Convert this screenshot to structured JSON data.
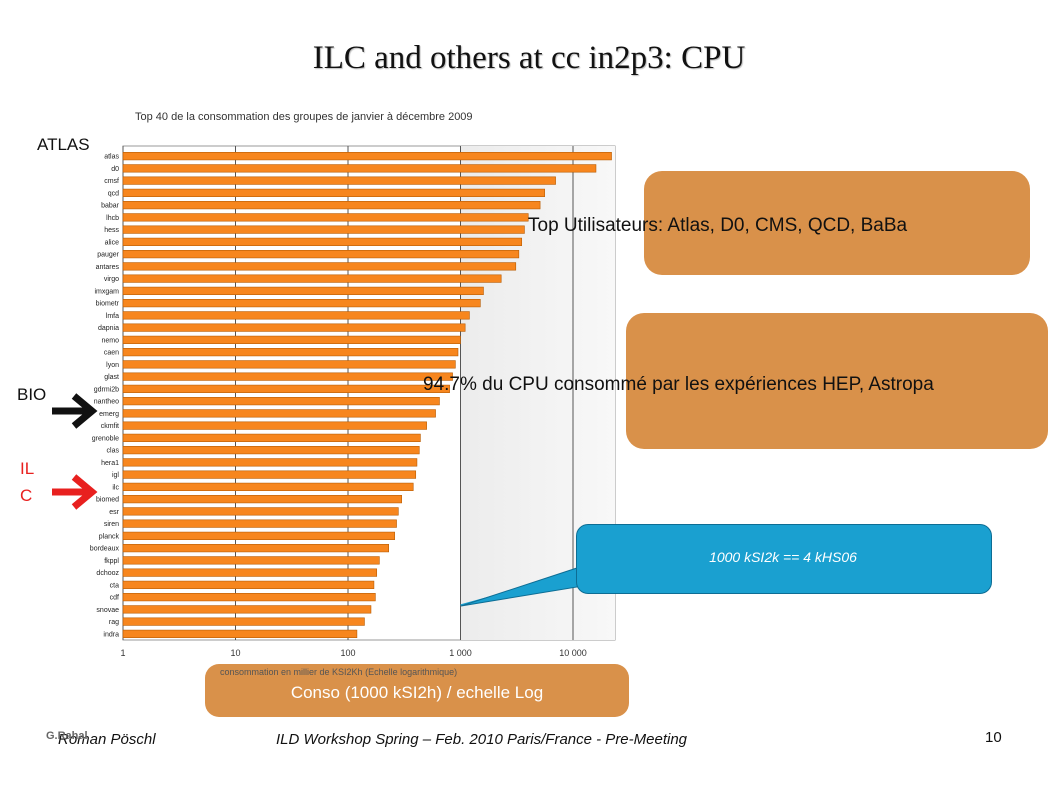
{
  "slide": {
    "title": "ILC and others at cc in2p3: CPU",
    "labels": {
      "atlas": "ATLAS",
      "bio": "BIO",
      "ilc_line1": "IL",
      "ilc_line2": "C"
    },
    "box_top": "Top Utilisateurs: Atlas, D0, CMS, QCD, BaBa",
    "box_middle": "94.7% du CPU consommé par les expériences HEP, Astropa",
    "callout": "1000 kSI2k == 4 kHS06",
    "axis_box": "Conso (1000 kSI2h) / echelle Log",
    "footer": {
      "credit": "G.Rahal",
      "author": "Roman Pöschl",
      "event": "ILD Workshop Spring – Feb. 2010 Paris/France - Pre-Meeting",
      "page": "10"
    },
    "colors": {
      "bar": "#f7861e",
      "box": "#d9914a",
      "callout": "#1aa0d0",
      "ilc_arrow": "#e8201f",
      "bio_arrow": "#111111"
    }
  },
  "chart_data": {
    "type": "bar",
    "orientation": "horizontal",
    "title": "Top 40 de la consommation des groupes de janvier à décembre 2009",
    "xlabel": "consommation en millier de  KSI2Kh (Echelle logarithmique)",
    "xscale": "log",
    "xlim": [
      1,
      35000
    ],
    "xticks": [
      "1",
      "10",
      "100",
      "1 000",
      "10 000"
    ],
    "grid": "vertical",
    "categories": [
      "atlas",
      "d0",
      "cmsf",
      "qcd",
      "babar",
      "lhcb",
      "hess",
      "alice",
      "pauger",
      "antares",
      "virgo",
      "imxgam",
      "biometr",
      "lmfa",
      "dapnia",
      "nemo",
      "caen",
      "lyon",
      "glast",
      "gdrmi2b",
      "nantheo",
      "emerg",
      "ckmfit",
      "grenoble",
      "clas",
      "hera1",
      "igl",
      "ilc",
      "biomed",
      "esr",
      "siren",
      "planck",
      "bordeaux",
      "fkppl",
      "dchooz",
      "cta",
      "cdf",
      "snovae",
      "rag",
      "indra"
    ],
    "values": [
      22000,
      16000,
      7000,
      5600,
      5100,
      4000,
      3700,
      3500,
      3300,
      3100,
      2300,
      1600,
      1500,
      1200,
      1100,
      1000,
      950,
      900,
      850,
      800,
      650,
      600,
      500,
      440,
      430,
      410,
      400,
      380,
      300,
      280,
      270,
      260,
      230,
      190,
      180,
      170,
      175,
      160,
      140,
      120
    ]
  }
}
